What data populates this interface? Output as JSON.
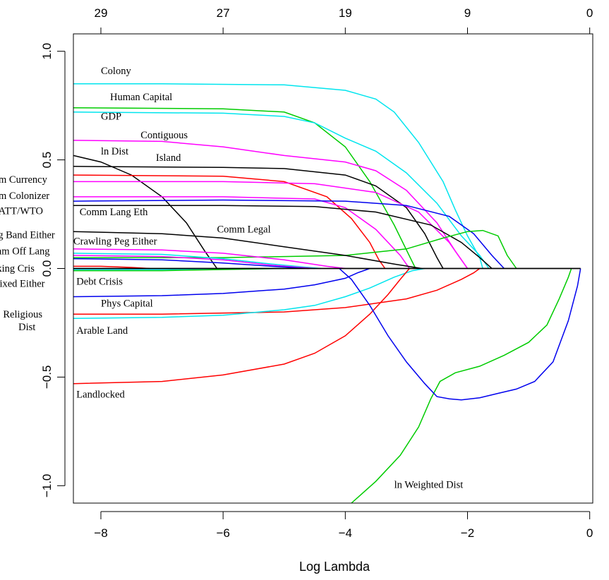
{
  "chart_data": {
    "type": "line",
    "xlabel": "Log Lambda",
    "ylabel": "",
    "xlim": [
      -8.45,
      0.05
    ],
    "ylim": [
      -1.08,
      1.08
    ],
    "x_ticks": [
      {
        "value": -8,
        "label": "−8"
      },
      {
        "value": -6,
        "label": "−6"
      },
      {
        "value": -4,
        "label": "−4"
      },
      {
        "value": -2,
        "label": "−2"
      },
      {
        "value": 0,
        "label": "0"
      }
    ],
    "y_ticks": [
      {
        "value": 1.0,
        "label": "1.0"
      },
      {
        "value": 0.5,
        "label": "0.5"
      },
      {
        "value": 0.0,
        "label": "0.0"
      },
      {
        "value": -0.5,
        "label": "−0.5"
      },
      {
        "value": -1.0,
        "label": "−1.0"
      }
    ],
    "top_ticks": [
      {
        "value": -8,
        "label": "29"
      },
      {
        "value": -6,
        "label": "27"
      },
      {
        "value": -4,
        "label": "19"
      },
      {
        "value": -2,
        "label": "9"
      },
      {
        "value": 0,
        "label": "0"
      }
    ],
    "grid": false,
    "series": [
      {
        "name": "Colony",
        "color": "#00e5ee",
        "points": [
          [
            -8.45,
            0.85
          ],
          [
            -7,
            0.85
          ],
          [
            -5,
            0.845
          ],
          [
            -4,
            0.82
          ],
          [
            -3.5,
            0.78
          ],
          [
            -3.2,
            0.72
          ],
          [
            -2.8,
            0.58
          ],
          [
            -2.4,
            0.4
          ],
          [
            -2.2,
            0.27
          ],
          [
            -2.0,
            0.15
          ],
          [
            -1.8,
            0.05
          ],
          [
            -1.75,
            0
          ]
        ]
      },
      {
        "name": "Human Capital",
        "color": "#00cc00",
        "points": [
          [
            -8.45,
            0.74
          ],
          [
            -6,
            0.735
          ],
          [
            -5,
            0.72
          ],
          [
            -4.5,
            0.67
          ],
          [
            -4,
            0.56
          ],
          [
            -3.6,
            0.4
          ],
          [
            -3.2,
            0.2
          ],
          [
            -2.85,
            0
          ]
        ]
      },
      {
        "name": "GDP",
        "color": "#00e5ee",
        "points": [
          [
            -8.45,
            0.72
          ],
          [
            -6,
            0.715
          ],
          [
            -5,
            0.7
          ],
          [
            -4.5,
            0.67
          ],
          [
            -4,
            0.6
          ],
          [
            -3.5,
            0.54
          ],
          [
            -3,
            0.44
          ],
          [
            -2.5,
            0.3
          ],
          [
            -2.1,
            0.15
          ],
          [
            -1.8,
            0.06
          ],
          [
            -1.65,
            0
          ]
        ]
      },
      {
        "name": "Contiguous",
        "color": "#ff00ff",
        "points": [
          [
            -8.45,
            0.59
          ],
          [
            -7,
            0.585
          ],
          [
            -6,
            0.56
          ],
          [
            -5,
            0.52
          ],
          [
            -4,
            0.49
          ],
          [
            -3.5,
            0.45
          ],
          [
            -3,
            0.36
          ],
          [
            -2.5,
            0.21
          ],
          [
            -2.2,
            0.08
          ],
          [
            -2.0,
            0
          ]
        ]
      },
      {
        "name": "ln Dist",
        "color": "#000000",
        "points": [
          [
            -8.45,
            0.52
          ],
          [
            -8,
            0.49
          ],
          [
            -7.5,
            0.43
          ],
          [
            -7,
            0.33
          ],
          [
            -6.6,
            0.21
          ],
          [
            -6.3,
            0.08
          ],
          [
            -6.1,
            0
          ]
        ]
      },
      {
        "name": "Island",
        "color": "#000000",
        "points": [
          [
            -8.45,
            0.47
          ],
          [
            -6,
            0.465
          ],
          [
            -5,
            0.46
          ],
          [
            -4,
            0.43
          ],
          [
            -3.5,
            0.38
          ],
          [
            -3,
            0.28
          ],
          [
            -2.7,
            0.16
          ],
          [
            -2.5,
            0.05
          ],
          [
            -2.4,
            0
          ]
        ]
      },
      {
        "name": "Comm Currency",
        "color": "#ff0000",
        "points": [
          [
            -8.45,
            0.43
          ],
          [
            -6,
            0.425
          ],
          [
            -5,
            0.4
          ],
          [
            -4.3,
            0.33
          ],
          [
            -3.9,
            0.23
          ],
          [
            -3.6,
            0.12
          ],
          [
            -3.45,
            0.04
          ],
          [
            -3.35,
            0
          ]
        ]
      },
      {
        "name": "Comm Colonizer",
        "color": "#ff00ff",
        "points": [
          [
            -8.45,
            0.4
          ],
          [
            -6,
            0.4
          ],
          [
            -4.5,
            0.39
          ],
          [
            -3.5,
            0.35
          ],
          [
            -2.8,
            0.26
          ],
          [
            -2.3,
            0.12
          ],
          [
            -2.1,
            0.04
          ],
          [
            -2.0,
            0
          ]
        ]
      },
      {
        "name": "Comm Colonizer 2",
        "color": "#ff00ff",
        "points": [
          [
            -8.45,
            0.33
          ],
          [
            -6,
            0.33
          ],
          [
            -4.5,
            0.32
          ],
          [
            -4,
            0.28
          ],
          [
            -3.5,
            0.18
          ],
          [
            -3.1,
            0.06
          ],
          [
            -2.95,
            0
          ]
        ]
      },
      {
        "name": "GATT/WTO",
        "color": "#0000ee",
        "points": [
          [
            -8.45,
            0.31
          ],
          [
            -6,
            0.315
          ],
          [
            -4,
            0.31
          ],
          [
            -3,
            0.29
          ],
          [
            -2.3,
            0.24
          ],
          [
            -1.9,
            0.16
          ],
          [
            -1.6,
            0.06
          ],
          [
            -1.4,
            0
          ]
        ]
      },
      {
        "name": "Comm Lang Eth",
        "color": "#000000",
        "points": [
          [
            -8.45,
            0.29
          ],
          [
            -6,
            0.29
          ],
          [
            -4.5,
            0.285
          ],
          [
            -3.5,
            0.26
          ],
          [
            -2.6,
            0.2
          ],
          [
            -2.1,
            0.12
          ],
          [
            -1.8,
            0.05
          ],
          [
            -1.6,
            0
          ]
        ]
      },
      {
        "name": "Comm Legal",
        "color": "#00cc00",
        "points": [
          [
            -8.45,
            0.05
          ],
          [
            -6,
            0.05
          ],
          [
            -4,
            0.06
          ],
          [
            -3,
            0.09
          ],
          [
            -2.4,
            0.14
          ],
          [
            -2.0,
            0.17
          ],
          [
            -1.75,
            0.175
          ],
          [
            -1.5,
            0.15
          ],
          [
            -1.35,
            0.06
          ],
          [
            -1.2,
            0
          ]
        ]
      },
      {
        "name": "Mvng Band Either",
        "color": "#000000",
        "points": [
          [
            -8.45,
            0.17
          ],
          [
            -7,
            0.16
          ],
          [
            -6,
            0.14
          ],
          [
            -5,
            0.1
          ],
          [
            -4,
            0.06
          ],
          [
            -3.2,
            0.02
          ],
          [
            -2.75,
            0
          ]
        ]
      },
      {
        "name": "Crawling Peg Either",
        "color": "#ff00ff",
        "points": [
          [
            -8.45,
            0.09
          ],
          [
            -7,
            0.085
          ],
          [
            -6,
            0.07
          ],
          [
            -5,
            0.04
          ],
          [
            -4.3,
            0.01
          ],
          [
            -4,
            0
          ]
        ]
      },
      {
        "name": "Comm Off Lang",
        "color": "#00e5ee",
        "points": [
          [
            -8.45,
            0.07
          ],
          [
            -7,
            0.065
          ],
          [
            -6,
            0.045
          ],
          [
            -5.2,
            0.02
          ],
          [
            -4.6,
            0.005
          ],
          [
            -4.4,
            0
          ]
        ]
      },
      {
        "name": "Comm Off Lang 2",
        "color": "#ff00ff",
        "points": [
          [
            -8.45,
            0.06
          ],
          [
            -7,
            0.055
          ],
          [
            -6,
            0.04
          ],
          [
            -5.2,
            0.015
          ],
          [
            -4.5,
            0
          ]
        ]
      },
      {
        "name": "Bnking Cris",
        "color": "#ff0000",
        "points": [
          [
            -8.45,
            0.01
          ],
          [
            -8,
            0.01
          ],
          [
            -7.5,
            0.005
          ],
          [
            -7.2,
            0
          ]
        ]
      },
      {
        "name": "Bnking Cris 2",
        "color": "#0000ee",
        "points": [
          [
            -8.45,
            0.045
          ],
          [
            -7,
            0.04
          ],
          [
            -6,
            0.025
          ],
          [
            -5.2,
            0.01
          ],
          [
            -4.6,
            0
          ]
        ]
      },
      {
        "name": "Fixed Either",
        "color": "#00cc00",
        "points": [
          [
            -8.45,
            -0.01
          ],
          [
            -7,
            -0.01
          ],
          [
            -6,
            -0.005
          ],
          [
            -5,
            0
          ]
        ]
      },
      {
        "name": "Debt Crisis",
        "color": "#00e5ee",
        "points": [
          [
            -8.45,
            -0.005
          ],
          [
            -7,
            -0.005
          ],
          [
            -6,
            0
          ],
          [
            -5,
            0
          ]
        ]
      },
      {
        "name": "Phys Capital",
        "color": "#0000ee",
        "points": [
          [
            -8.45,
            -0.13
          ],
          [
            -7,
            -0.125
          ],
          [
            -6,
            -0.115
          ],
          [
            -5,
            -0.095
          ],
          [
            -4.5,
            -0.075
          ],
          [
            -4,
            -0.045
          ],
          [
            -3.8,
            -0.02
          ],
          [
            -3.6,
            0
          ]
        ]
      },
      {
        "name": "Religious Dist",
        "color": "#ff0000",
        "points": [
          [
            -8.45,
            -0.21
          ],
          [
            -7,
            -0.21
          ],
          [
            -5,
            -0.2
          ],
          [
            -4,
            -0.18
          ],
          [
            -3,
            -0.14
          ],
          [
            -2.5,
            -0.1
          ],
          [
            -2.1,
            -0.05
          ],
          [
            -1.9,
            -0.02
          ],
          [
            -1.8,
            0
          ]
        ]
      },
      {
        "name": "Arable Land",
        "color": "#00e5ee",
        "points": [
          [
            -8.45,
            -0.23
          ],
          [
            -7,
            -0.225
          ],
          [
            -6,
            -0.215
          ],
          [
            -5,
            -0.19
          ],
          [
            -4.5,
            -0.17
          ],
          [
            -4,
            -0.13
          ],
          [
            -3.6,
            -0.09
          ],
          [
            -3.2,
            -0.04
          ],
          [
            -2.9,
            -0.01
          ],
          [
            -2.7,
            0
          ]
        ]
      },
      {
        "name": "Landlocked",
        "color": "#ff0000",
        "points": [
          [
            -8.45,
            -0.53
          ],
          [
            -7,
            -0.52
          ],
          [
            -6,
            -0.49
          ],
          [
            -5,
            -0.44
          ],
          [
            -4.5,
            -0.39
          ],
          [
            -4,
            -0.31
          ],
          [
            -3.6,
            -0.21
          ],
          [
            -3.3,
            -0.12
          ],
          [
            -3.1,
            -0.05
          ],
          [
            -2.95,
            0
          ]
        ]
      },
      {
        "name": "ln Weighted Dist",
        "color": "#00cc00",
        "points": [
          [
            -3.9,
            -1.08
          ],
          [
            -3.5,
            -0.98
          ],
          [
            -3.1,
            -0.86
          ],
          [
            -2.8,
            -0.73
          ],
          [
            -2.6,
            -0.6
          ],
          [
            -2.45,
            -0.52
          ],
          [
            -2.2,
            -0.48
          ],
          [
            -1.8,
            -0.45
          ],
          [
            -1.4,
            -0.4
          ],
          [
            -1.0,
            -0.34
          ],
          [
            -0.7,
            -0.26
          ],
          [
            -0.5,
            -0.14
          ],
          [
            -0.35,
            -0.04
          ],
          [
            -0.3,
            0
          ]
        ]
      },
      {
        "name": "ln Weighted Dist 2",
        "color": "#0000ee",
        "points": [
          [
            -4.1,
            0
          ],
          [
            -3.9,
            -0.05
          ],
          [
            -3.6,
            -0.17
          ],
          [
            -3.3,
            -0.31
          ],
          [
            -3.0,
            -0.43
          ],
          [
            -2.7,
            -0.53
          ],
          [
            -2.5,
            -0.59
          ],
          [
            -2.3,
            -0.6
          ],
          [
            -2.1,
            -0.605
          ],
          [
            -1.8,
            -0.595
          ],
          [
            -1.5,
            -0.575
          ],
          [
            -1.2,
            -0.555
          ],
          [
            -0.9,
            -0.52
          ],
          [
            -0.6,
            -0.43
          ],
          [
            -0.35,
            -0.24
          ],
          [
            -0.2,
            -0.08
          ],
          [
            -0.15,
            0
          ]
        ]
      }
    ],
    "baseline": {
      "from": -8.45,
      "to": -0.15,
      "y": 0,
      "color": "#000000"
    },
    "labels": [
      {
        "text": "Colony",
        "x": -8.0,
        "y": 0.895
      },
      {
        "text": "Human Capital",
        "x": -7.85,
        "y": 0.775
      },
      {
        "text": "GDP",
        "x": -8.0,
        "y": 0.685
      },
      {
        "text": "Contiguous",
        "x": -7.35,
        "y": 0.6
      },
      {
        "text": "ln Dist",
        "x": -8.0,
        "y": 0.525
      },
      {
        "text": "Island",
        "x": -7.1,
        "y": 0.495
      },
      {
        "text": "Comm Currency",
        "x": -10.0,
        "y": 0.395
      },
      {
        "text": "Comm Colonizer",
        "x": -10.0,
        "y": 0.32
      },
      {
        "text": "GATT/WTO",
        "x": -9.8,
        "y": 0.25
      },
      {
        "text": "Comm Lang Eth",
        "x": -8.35,
        "y": 0.245
      },
      {
        "text": "Comm Legal",
        "x": -6.1,
        "y": 0.165
      },
      {
        "text": "Mvng Band Either",
        "x": -10.0,
        "y": 0.14
      },
      {
        "text": "Crawling Peg Either",
        "x": -8.45,
        "y": 0.11
      },
      {
        "text": "Comm Off Lang",
        "x": -9.95,
        "y": 0.065
      },
      {
        "text": "Bnking Cris",
        "x": -9.9,
        "y": -0.015
      },
      {
        "text": "Fixed Either",
        "x": -9.75,
        "y": -0.085
      },
      {
        "text": "Debt Crisis",
        "x": -8.4,
        "y": -0.075
      },
      {
        "text": "Phys Capital",
        "x": -8.0,
        "y": -0.175
      },
      {
        "text": "Religious",
        "x": -9.6,
        "y": -0.225
      },
      {
        "text": "Dist",
        "x": -9.35,
        "y": -0.285
      },
      {
        "text": "Arable Land",
        "x": -8.4,
        "y": -0.3
      },
      {
        "text": "Landlocked",
        "x": -8.4,
        "y": -0.595
      },
      {
        "text": "ln Weighted Dist",
        "x": -3.2,
        "y": -1.01
      }
    ]
  }
}
